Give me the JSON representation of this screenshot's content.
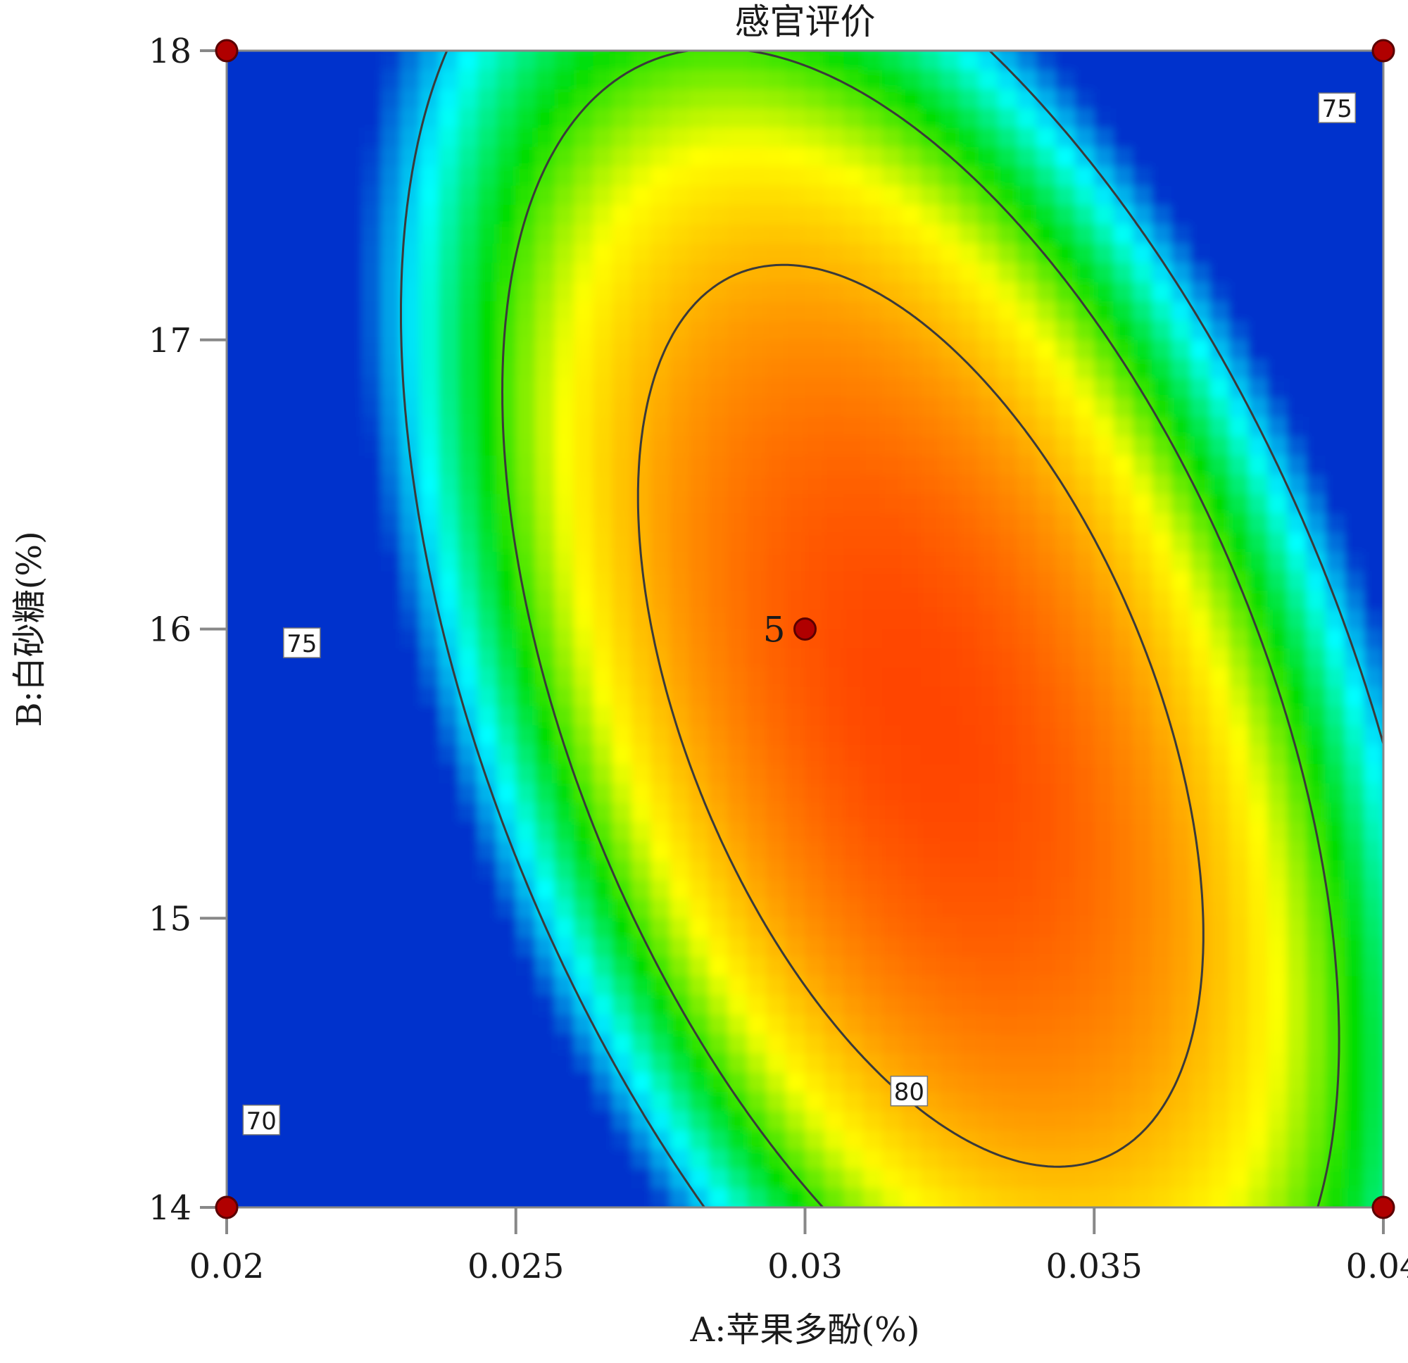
{
  "chart_data": {
    "type": "heatmap",
    "subtype": "contour",
    "title": "感官评价",
    "xlabel": "A:苹果多酚(%)",
    "ylabel": "B:白砂糖(%)",
    "xlim": [
      0.02,
      0.04
    ],
    "ylim": [
      14,
      18
    ],
    "x_ticks": [
      "0.02",
      "0.025",
      "0.03",
      "0.035",
      "0.04"
    ],
    "y_ticks": [
      "14",
      "15",
      "16",
      "17",
      "18"
    ],
    "grid": false,
    "colormap": [
      "#0033cc",
      "#00ffff",
      "#00dd00",
      "#ffff00",
      "#ff9900",
      "#ff4400"
    ],
    "contour_levels": [
      70,
      75,
      80
    ],
    "contour_labels": [
      {
        "text": "70",
        "x": 0.0206,
        "y": 14.3
      },
      {
        "text": "75",
        "x": 0.0213,
        "y": 15.95
      },
      {
        "text": "80",
        "x": 0.0318,
        "y": 14.4
      },
      {
        "text": "75",
        "x": 0.0392,
        "y": 17.8
      }
    ],
    "design_points": [
      {
        "x": 0.02,
        "y": 18,
        "label": ""
      },
      {
        "x": 0.04,
        "y": 18,
        "label": ""
      },
      {
        "x": 0.02,
        "y": 14,
        "label": ""
      },
      {
        "x": 0.04,
        "y": 14,
        "label": ""
      },
      {
        "x": 0.03,
        "y": 16,
        "label": "5"
      }
    ],
    "response_max": {
      "x": 0.032,
      "y": 15.7
    }
  }
}
